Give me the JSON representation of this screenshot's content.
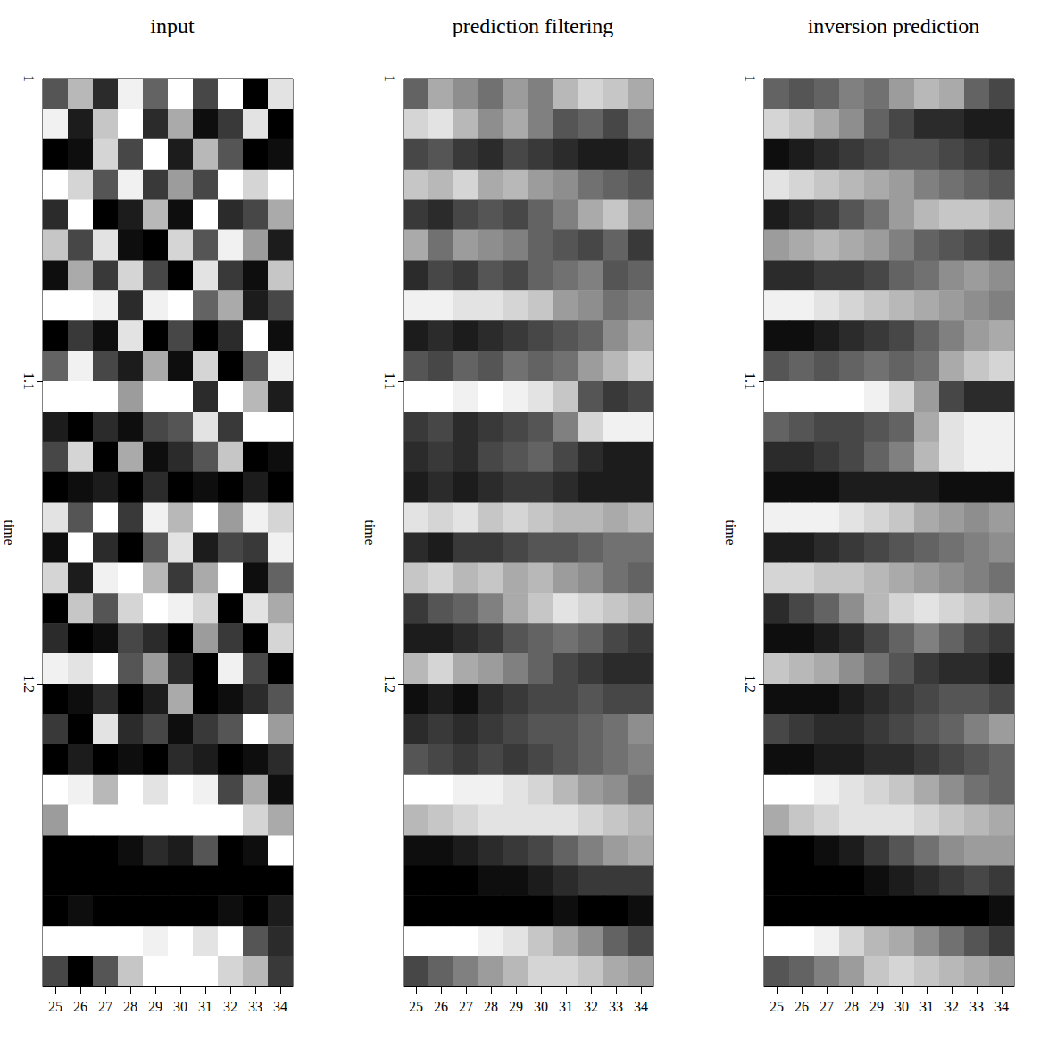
{
  "chart_data": [
    {
      "type": "heatmap",
      "title": "input",
      "y_label": "time",
      "categories": [
        25,
        26,
        27,
        28,
        29,
        30,
        31,
        32,
        33,
        34
      ],
      "ylim": [
        1,
        1.3
      ],
      "yticks": [
        1,
        1.1,
        1.2
      ],
      "color_range": [
        -9,
        9
      ],
      "time": [
        1.0,
        1.01,
        1.02,
        1.03,
        1.04,
        1.05,
        1.06,
        1.07,
        1.08,
        1.09,
        1.1,
        1.11,
        1.12,
        1.13,
        1.14,
        1.15,
        1.16,
        1.17,
        1.18,
        1.19,
        1.2,
        1.21,
        1.22,
        1.23,
        1.24,
        1.25,
        1.26,
        1.27,
        1.28,
        1.29
      ],
      "cells": [
        [
          -3,
          4,
          -6,
          8,
          -2,
          9,
          -4,
          9,
          -9,
          7
        ],
        [
          8,
          -7,
          5,
          9,
          -6,
          3,
          -8,
          -5,
          7,
          -9
        ],
        [
          -9,
          -8,
          6,
          -4,
          9,
          -7,
          4,
          -3,
          -9,
          -8
        ],
        [
          9,
          6,
          -3,
          8,
          -5,
          2,
          -4,
          9,
          6,
          9
        ],
        [
          -6,
          9,
          -9,
          -7,
          4,
          -8,
          9,
          -6,
          -4,
          3
        ],
        [
          5,
          -4,
          7,
          -8,
          -9,
          6,
          -3,
          8,
          2,
          -7
        ],
        [
          -8,
          3,
          -5,
          6,
          -4,
          -9,
          7,
          -5,
          -8,
          5
        ],
        [
          9,
          9,
          8,
          -6,
          8,
          9,
          -2,
          3,
          -7,
          -4
        ],
        [
          -9,
          -5,
          -8,
          7,
          -9,
          -4,
          -9,
          -6,
          9,
          -8
        ],
        [
          -2,
          8,
          -4,
          -7,
          3,
          -8,
          6,
          -9,
          -3,
          8
        ],
        [
          9,
          9,
          9,
          2,
          9,
          9,
          -6,
          9,
          4,
          -7
        ],
        [
          -7,
          -9,
          -6,
          -8,
          -4,
          -3,
          7,
          -5,
          9,
          9
        ],
        [
          -4,
          6,
          -9,
          3,
          -8,
          -6,
          -3,
          5,
          -9,
          -8
        ],
        [
          -9,
          -8,
          -7,
          -9,
          -6,
          -9,
          -8,
          -9,
          -7,
          -9
        ],
        [
          7,
          -3,
          9,
          -5,
          8,
          4,
          9,
          2,
          8,
          6
        ],
        [
          -8,
          9,
          -6,
          -9,
          -3,
          7,
          -7,
          -4,
          -5,
          8
        ],
        [
          6,
          -7,
          8,
          9,
          4,
          -5,
          3,
          9,
          -8,
          -2
        ],
        [
          -9,
          5,
          -3,
          6,
          9,
          8,
          6,
          -9,
          7,
          3
        ],
        [
          -6,
          -9,
          -8,
          -4,
          -6,
          -9,
          2,
          -5,
          -9,
          6
        ],
        [
          8,
          7,
          9,
          -3,
          2,
          -6,
          -9,
          8,
          -4,
          -9
        ],
        [
          -9,
          -8,
          -6,
          -9,
          -7,
          3,
          -9,
          -8,
          -6,
          -3
        ],
        [
          -5,
          -9,
          7,
          -6,
          -4,
          -8,
          -5,
          -3,
          9,
          2
        ],
        [
          -9,
          -7,
          -9,
          -8,
          -9,
          -6,
          -7,
          -9,
          -8,
          -6
        ],
        [
          9,
          8,
          4,
          9,
          7,
          9,
          8,
          -4,
          3,
          -8
        ],
        [
          2,
          9,
          9,
          9,
          9,
          9,
          9,
          9,
          6,
          3
        ],
        [
          -9,
          -9,
          -9,
          -8,
          -6,
          -7,
          -3,
          -9,
          -8,
          9
        ],
        [
          -9,
          -9,
          -9,
          -9,
          -9,
          -9,
          -9,
          -9,
          -9,
          -9
        ],
        [
          -9,
          -8,
          -9,
          -9,
          -9,
          -9,
          -9,
          -8,
          -9,
          -7
        ],
        [
          9,
          9,
          9,
          9,
          8,
          9,
          7,
          9,
          -3,
          -6
        ],
        [
          -4,
          -9,
          -3,
          5,
          9,
          9,
          9,
          6,
          4,
          -5
        ]
      ]
    },
    {
      "type": "heatmap",
      "title": "prediction filtering",
      "y_label": "time",
      "categories": [
        25,
        26,
        27,
        28,
        29,
        30,
        31,
        32,
        33,
        34
      ],
      "ylim": [
        1,
        1.3
      ],
      "yticks": [
        1,
        1.1,
        1.2
      ],
      "color_range": [
        -9,
        9
      ],
      "time": [
        1.0,
        1.01,
        1.02,
        1.03,
        1.04,
        1.05,
        1.06,
        1.07,
        1.08,
        1.09,
        1.1,
        1.11,
        1.12,
        1.13,
        1.14,
        1.15,
        1.16,
        1.17,
        1.18,
        1.19,
        1.2,
        1.21,
        1.22,
        1.23,
        1.24,
        1.25,
        1.26,
        1.27,
        1.28,
        1.29
      ],
      "cells": [
        [
          -2,
          3,
          1,
          -1,
          2,
          0,
          4,
          6,
          5,
          3
        ],
        [
          6,
          7,
          4,
          1,
          3,
          0,
          -3,
          -2,
          -4,
          -1
        ],
        [
          -4,
          -3,
          -5,
          -6,
          -4,
          -5,
          -6,
          -7,
          -7,
          -6
        ],
        [
          5,
          4,
          6,
          3,
          4,
          2,
          1,
          -1,
          -2,
          -3
        ],
        [
          -5,
          -6,
          -4,
          -3,
          -4,
          -2,
          0,
          3,
          5,
          2
        ],
        [
          3,
          -1,
          2,
          1,
          0,
          -2,
          -3,
          -4,
          -2,
          -5
        ],
        [
          -6,
          -4,
          -5,
          -3,
          -4,
          -2,
          -1,
          0,
          -3,
          -2
        ],
        [
          8,
          8,
          7,
          7,
          6,
          5,
          2,
          1,
          -1,
          0
        ],
        [
          -7,
          -6,
          -7,
          -6,
          -5,
          -4,
          -3,
          -2,
          1,
          3
        ],
        [
          -3,
          -4,
          -2,
          -3,
          -1,
          -2,
          -1,
          2,
          4,
          6
        ],
        [
          9,
          9,
          8,
          9,
          8,
          7,
          5,
          -3,
          -5,
          -4
        ],
        [
          -5,
          -4,
          -6,
          -5,
          -4,
          -3,
          0,
          6,
          8,
          8
        ],
        [
          -6,
          -5,
          -6,
          -4,
          -3,
          -2,
          -4,
          -6,
          -7,
          -7
        ],
        [
          -7,
          -6,
          -7,
          -6,
          -5,
          -5,
          -6,
          -7,
          -7,
          -7
        ],
        [
          7,
          6,
          7,
          5,
          6,
          5,
          4,
          4,
          3,
          4
        ],
        [
          -6,
          -7,
          -5,
          -5,
          -4,
          -3,
          -3,
          -2,
          -1,
          -1
        ],
        [
          5,
          6,
          4,
          5,
          3,
          4,
          2,
          1,
          -1,
          -2
        ],
        [
          -5,
          -3,
          -2,
          0,
          3,
          5,
          7,
          6,
          5,
          4
        ],
        [
          -7,
          -7,
          -6,
          -5,
          -3,
          -2,
          -1,
          -2,
          -4,
          -5
        ],
        [
          4,
          6,
          3,
          2,
          0,
          -2,
          -4,
          -5,
          -6,
          -6
        ],
        [
          -8,
          -7,
          -8,
          -6,
          -5,
          -4,
          -4,
          -3,
          -4,
          -4
        ],
        [
          -6,
          -5,
          -6,
          -5,
          -4,
          -3,
          -3,
          -2,
          -1,
          1
        ],
        [
          -3,
          -4,
          -5,
          -4,
          -5,
          -4,
          -3,
          -2,
          -1,
          0
        ],
        [
          9,
          9,
          8,
          8,
          7,
          6,
          4,
          2,
          1,
          -1
        ],
        [
          4,
          5,
          6,
          7,
          7,
          7,
          7,
          6,
          5,
          4
        ],
        [
          -8,
          -8,
          -7,
          -6,
          -5,
          -4,
          -2,
          0,
          2,
          3
        ],
        [
          -9,
          -9,
          -9,
          -8,
          -8,
          -7,
          -6,
          -5,
          -5,
          -5
        ],
        [
          -9,
          -9,
          -9,
          -9,
          -9,
          -9,
          -8,
          -9,
          -9,
          -8
        ],
        [
          9,
          9,
          9,
          8,
          7,
          5,
          3,
          1,
          -2,
          -4
        ],
        [
          -4,
          -2,
          0,
          2,
          4,
          6,
          6,
          5,
          3,
          2
        ]
      ]
    },
    {
      "type": "heatmap",
      "title": "inversion prediction",
      "y_label": "time",
      "categories": [
        25,
        26,
        27,
        28,
        29,
        30,
        31,
        32,
        33,
        34
      ],
      "ylim": [
        1,
        1.3
      ],
      "yticks": [
        1,
        1.1,
        1.2
      ],
      "color_range": [
        -9,
        9
      ],
      "time": [
        1.0,
        1.01,
        1.02,
        1.03,
        1.04,
        1.05,
        1.06,
        1.07,
        1.08,
        1.09,
        1.1,
        1.11,
        1.12,
        1.13,
        1.14,
        1.15,
        1.16,
        1.17,
        1.18,
        1.19,
        1.2,
        1.21,
        1.22,
        1.23,
        1.24,
        1.25,
        1.26,
        1.27,
        1.28,
        1.29
      ],
      "cells": [
        [
          -2,
          -3,
          -2,
          0,
          -1,
          2,
          4,
          3,
          -2,
          -4
        ],
        [
          6,
          5,
          3,
          1,
          -2,
          -4,
          -6,
          -6,
          -7,
          -7
        ],
        [
          -8,
          -7,
          -6,
          -5,
          -4,
          -3,
          -3,
          -4,
          -5,
          -6
        ],
        [
          7,
          6,
          5,
          4,
          3,
          2,
          0,
          -1,
          -2,
          -3
        ],
        [
          -7,
          -6,
          -5,
          -3,
          -1,
          2,
          4,
          5,
          5,
          4
        ],
        [
          2,
          3,
          4,
          3,
          2,
          0,
          -2,
          -3,
          -4,
          -5
        ],
        [
          -6,
          -6,
          -5,
          -5,
          -4,
          -2,
          -1,
          1,
          2,
          1
        ],
        [
          8,
          8,
          7,
          6,
          5,
          4,
          3,
          2,
          1,
          0
        ],
        [
          -8,
          -8,
          -7,
          -6,
          -5,
          -4,
          -2,
          0,
          2,
          3
        ],
        [
          -3,
          -2,
          -3,
          -2,
          -1,
          -2,
          -1,
          3,
          5,
          6
        ],
        [
          9,
          9,
          9,
          9,
          8,
          6,
          2,
          -4,
          -6,
          -6
        ],
        [
          -2,
          -3,
          -4,
          -4,
          -3,
          -2,
          3,
          7,
          8,
          8
        ],
        [
          -6,
          -6,
          -5,
          -4,
          -2,
          0,
          4,
          7,
          8,
          8
        ],
        [
          -8,
          -8,
          -8,
          -7,
          -7,
          -7,
          -7,
          -8,
          -8,
          -8
        ],
        [
          8,
          8,
          8,
          7,
          6,
          5,
          3,
          2,
          1,
          2
        ],
        [
          -7,
          -7,
          -6,
          -5,
          -4,
          -3,
          -2,
          -1,
          0,
          1
        ],
        [
          6,
          6,
          5,
          5,
          4,
          3,
          2,
          1,
          0,
          -1
        ],
        [
          -6,
          -4,
          -2,
          1,
          4,
          6,
          7,
          6,
          5,
          4
        ],
        [
          -8,
          -8,
          -7,
          -6,
          -4,
          -2,
          0,
          -2,
          -4,
          -5
        ],
        [
          5,
          4,
          3,
          1,
          -1,
          -3,
          -5,
          -6,
          -6,
          -7
        ],
        [
          -8,
          -8,
          -8,
          -7,
          -6,
          -5,
          -4,
          -3,
          -3,
          -4
        ],
        [
          -4,
          -5,
          -6,
          -6,
          -5,
          -4,
          -3,
          -2,
          0,
          2
        ],
        [
          -8,
          -8,
          -7,
          -7,
          -6,
          -6,
          -5,
          -4,
          -3,
          -2
        ],
        [
          9,
          9,
          8,
          7,
          6,
          5,
          3,
          1,
          -1,
          -2
        ],
        [
          3,
          5,
          6,
          7,
          7,
          7,
          6,
          5,
          4,
          3
        ],
        [
          -9,
          -9,
          -8,
          -7,
          -5,
          -3,
          -1,
          1,
          2,
          2
        ],
        [
          -9,
          -9,
          -9,
          -9,
          -8,
          -7,
          -6,
          -5,
          -4,
          -5
        ],
        [
          -9,
          -9,
          -9,
          -9,
          -9,
          -9,
          -9,
          -9,
          -9,
          -8
        ],
        [
          9,
          9,
          8,
          6,
          4,
          3,
          1,
          -1,
          -3,
          -5
        ],
        [
          -3,
          -2,
          0,
          2,
          5,
          6,
          5,
          4,
          3,
          2
        ]
      ]
    }
  ]
}
